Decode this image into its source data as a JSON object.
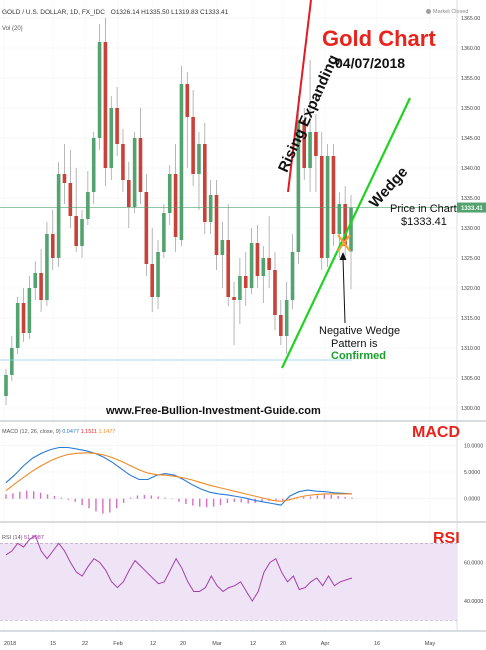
{
  "header": {
    "symbol": "GOLD / U.S. DOLLAR, 1D, FX_IDC",
    "ohlc": "O1326.14  H1335.50  L1319.83  C1333.41",
    "volume_label": "Vol (20)",
    "market_status": "Market Closed"
  },
  "annotations": {
    "title": "Gold Chart",
    "date": "04/07/2018",
    "rising_label": "Rising Expanding",
    "wedge_label": "Wedge",
    "price_title": "Price in Chart",
    "price_value": "$1333.41",
    "negative_line1": "Negative Wedge",
    "negative_line2": "Pattern is",
    "negative_line3": "Confirmed",
    "website": "www.Free-Bullion-Investment-Guide.com",
    "macd_title": "MACD",
    "rsi_title": "RSI"
  },
  "indicators": {
    "macd_legend": "MACD (12, 26, close, 9)",
    "macd_val1": "0.0477",
    "macd_val2": "1.1511",
    "macd_val3": "1.1477",
    "rsi_legend": "RSI (14)",
    "rsi_val": "51.9987"
  },
  "colors": {
    "up": "#53a36f",
    "down": "#c9423a",
    "red_line": "#e31b23",
    "green_line": "#21d321",
    "macd_line": "#2a7bd6",
    "signal_line": "#f08a24",
    "histogram": "#d96cc4",
    "rsi_line": "#a33fa8",
    "rsi_band": "#efe3f6"
  },
  "chart_data": [
    {
      "type": "candlestick",
      "title": "Gold Chart",
      "ylim": [
        1298,
        1367
      ],
      "y_ticks": [
        "1365.00",
        "1360.00",
        "1355.00",
        "1350.00",
        "1345.00",
        "1340.00",
        "1335.00",
        "1330.00",
        "1325.00",
        "1320.00",
        "1315.00",
        "1310.00",
        "1305.00",
        "1300.00"
      ],
      "x_ticks": [
        "2018",
        "15",
        "22",
        "Feb",
        "12",
        "20",
        "Mar",
        "12",
        "20",
        "Apr",
        "16",
        "May"
      ],
      "last_price_label": "1333.41",
      "candles": [
        {
          "o": 1302.0,
          "h": 1306.5,
          "l": 1300.5,
          "c": 1305.5
        },
        {
          "o": 1305.5,
          "h": 1312.0,
          "l": 1304.5,
          "c": 1310.0
        },
        {
          "o": 1310.0,
          "h": 1318.5,
          "l": 1309.0,
          "c": 1317.5
        },
        {
          "o": 1317.5,
          "h": 1320.0,
          "l": 1311.0,
          "c": 1312.5
        },
        {
          "o": 1312.5,
          "h": 1322.0,
          "l": 1311.5,
          "c": 1320.0
        },
        {
          "o": 1320.0,
          "h": 1324.5,
          "l": 1318.0,
          "c": 1322.5
        },
        {
          "o": 1322.5,
          "h": 1326.5,
          "l": 1316.0,
          "c": 1318.0
        },
        {
          "o": 1318.0,
          "h": 1331.0,
          "l": 1317.0,
          "c": 1329.0
        },
        {
          "o": 1329.0,
          "h": 1333.0,
          "l": 1323.0,
          "c": 1325.0
        },
        {
          "o": 1325.0,
          "h": 1341.0,
          "l": 1323.5,
          "c": 1339.0
        },
        {
          "o": 1339.0,
          "h": 1344.0,
          "l": 1334.0,
          "c": 1337.5
        },
        {
          "o": 1337.5,
          "h": 1343.0,
          "l": 1330.0,
          "c": 1332.0
        },
        {
          "o": 1332.0,
          "h": 1340.0,
          "l": 1326.0,
          "c": 1327.0
        },
        {
          "o": 1327.0,
          "h": 1333.0,
          "l": 1325.0,
          "c": 1331.5
        },
        {
          "o": 1331.5,
          "h": 1339.5,
          "l": 1330.5,
          "c": 1336.0
        },
        {
          "o": 1336.0,
          "h": 1346.0,
          "l": 1334.0,
          "c": 1345.0
        },
        {
          "o": 1345.0,
          "h": 1364.0,
          "l": 1343.0,
          "c": 1361.0
        },
        {
          "o": 1361.0,
          "h": 1365.0,
          "l": 1337.0,
          "c": 1340.0
        },
        {
          "o": 1340.0,
          "h": 1352.0,
          "l": 1338.0,
          "c": 1350.0
        },
        {
          "o": 1350.0,
          "h": 1353.5,
          "l": 1342.0,
          "c": 1344.0
        },
        {
          "o": 1344.0,
          "h": 1346.5,
          "l": 1336.0,
          "c": 1338.0
        },
        {
          "o": 1338.0,
          "h": 1341.0,
          "l": 1330.0,
          "c": 1333.5
        },
        {
          "o": 1333.5,
          "h": 1346.0,
          "l": 1332.5,
          "c": 1345.0
        },
        {
          "o": 1345.0,
          "h": 1350.0,
          "l": 1334.0,
          "c": 1336.0
        },
        {
          "o": 1336.0,
          "h": 1339.0,
          "l": 1322.0,
          "c": 1324.0
        },
        {
          "o": 1324.0,
          "h": 1330.0,
          "l": 1316.0,
          "c": 1318.5
        },
        {
          "o": 1318.5,
          "h": 1328.0,
          "l": 1316.5,
          "c": 1326.0
        },
        {
          "o": 1326.0,
          "h": 1334.0,
          "l": 1325.0,
          "c": 1332.5
        },
        {
          "o": 1332.5,
          "h": 1340.5,
          "l": 1330.5,
          "c": 1339.0
        },
        {
          "o": 1339.0,
          "h": 1344.0,
          "l": 1326.0,
          "c": 1328.5
        },
        {
          "o": 1328.0,
          "h": 1357.0,
          "l": 1327.0,
          "c": 1354.0
        },
        {
          "o": 1354.0,
          "h": 1356.0,
          "l": 1340.0,
          "c": 1348.5
        },
        {
          "o": 1348.5,
          "h": 1353.0,
          "l": 1337.0,
          "c": 1339.0
        },
        {
          "o": 1339.0,
          "h": 1346.0,
          "l": 1333.0,
          "c": 1344.0
        },
        {
          "o": 1344.0,
          "h": 1347.5,
          "l": 1329.0,
          "c": 1331.0
        },
        {
          "o": 1331.0,
          "h": 1338.0,
          "l": 1329.0,
          "c": 1335.5
        },
        {
          "o": 1335.5,
          "h": 1338.0,
          "l": 1323.0,
          "c": 1325.5
        },
        {
          "o": 1325.5,
          "h": 1331.0,
          "l": 1320.0,
          "c": 1328.0
        },
        {
          "o": 1328.0,
          "h": 1334.0,
          "l": 1317.0,
          "c": 1318.5
        },
        {
          "o": 1318.5,
          "h": 1321.0,
          "l": 1310.5,
          "c": 1318.0
        },
        {
          "o": 1318.0,
          "h": 1325.0,
          "l": 1314.0,
          "c": 1322.0
        },
        {
          "o": 1322.0,
          "h": 1326.0,
          "l": 1317.0,
          "c": 1320.0
        },
        {
          "o": 1320.0,
          "h": 1330.0,
          "l": 1319.0,
          "c": 1327.5
        },
        {
          "o": 1327.5,
          "h": 1330.5,
          "l": 1320.0,
          "c": 1322.0
        },
        {
          "o": 1322.0,
          "h": 1327.0,
          "l": 1317.5,
          "c": 1325.0
        },
        {
          "o": 1325.0,
          "h": 1332.0,
          "l": 1320.0,
          "c": 1323.0
        },
        {
          "o": 1323.0,
          "h": 1326.0,
          "l": 1313.0,
          "c": 1315.5
        },
        {
          "o": 1315.5,
          "h": 1318.0,
          "l": 1310.5,
          "c": 1312.0
        },
        {
          "o": 1312.0,
          "h": 1321.0,
          "l": 1309.0,
          "c": 1318.0
        },
        {
          "o": 1318.0,
          "h": 1329.0,
          "l": 1316.5,
          "c": 1326.0
        },
        {
          "o": 1326.0,
          "h": 1352.0,
          "l": 1324.0,
          "c": 1348.0
        },
        {
          "o": 1348.0,
          "h": 1350.0,
          "l": 1338.0,
          "c": 1340.0
        },
        {
          "o": 1340.0,
          "h": 1358.0,
          "l": 1336.0,
          "c": 1346.0
        },
        {
          "o": 1346.0,
          "h": 1349.0,
          "l": 1336.0,
          "c": 1342.0
        },
        {
          "o": 1342.0,
          "h": 1346.0,
          "l": 1323.0,
          "c": 1325.0
        },
        {
          "o": 1325.0,
          "h": 1344.0,
          "l": 1323.5,
          "c": 1342.0
        },
        {
          "o": 1342.0,
          "h": 1344.0,
          "l": 1327.0,
          "c": 1329.0
        },
        {
          "o": 1329.0,
          "h": 1336.0,
          "l": 1325.0,
          "c": 1334.0
        },
        {
          "o": 1334.0,
          "h": 1337.0,
          "l": 1325.0,
          "c": 1327.0
        },
        {
          "o": 1326.1,
          "h": 1335.5,
          "l": 1319.8,
          "c": 1333.4
        }
      ]
    },
    {
      "type": "line",
      "title": "MACD",
      "y_ticks": [
        "10.0000",
        "5.0000",
        "0.0000"
      ],
      "ylim": [
        -4,
        14
      ],
      "series": [
        {
          "name": "MACD",
          "values": [
            3,
            4.5,
            6.2,
            7.6,
            8.5,
            9.2,
            9.6,
            9.6,
            9.3,
            9,
            8.5,
            7.8,
            6.8,
            5.6,
            4.4,
            3.6,
            3.6,
            4.4,
            4.7,
            4.4,
            3.6,
            2.6,
            1.8,
            1.2,
            0.9,
            0.7,
            0.4,
            0.1,
            -0.3,
            -0.6,
            -0.9,
            -1.2,
            0.5,
            1.3,
            1.6,
            1.4,
            1.3,
            1.1,
            1.0,
            0.9
          ]
        },
        {
          "name": "Signal",
          "values": [
            1.5,
            2.8,
            4,
            5.2,
            6.2,
            7.1,
            7.8,
            8.3,
            8.5,
            8.6,
            8.5,
            8.2,
            7.7,
            7,
            6.2,
            5.4,
            4.8,
            4.5,
            4.4,
            4.2,
            3.9,
            3.5,
            3,
            2.5,
            2.1,
            1.7,
            1.3,
            0.9,
            0.5,
            0.1,
            -0.3,
            -0.5,
            -0.2,
            0.3,
            0.6,
            0.8,
            0.9,
            0.9,
            0.9,
            0.9
          ]
        }
      ],
      "histogram": [
        0.8,
        1.0,
        1.3,
        1.5,
        1.4,
        1.1,
        0.8,
        0.5,
        0.2,
        -0.2,
        -0.6,
        -1.2,
        -1.8,
        -2.4,
        -2.8,
        -2.6,
        -1.8,
        -0.8,
        0.2,
        0.6,
        0.7,
        0.6,
        0.4,
        0.2,
        -0.1,
        -0.6,
        -1.0,
        -1.3,
        -1.5,
        -1.6,
        -1.5,
        -1.2,
        -0.8,
        -0.6,
        -0.7,
        -0.9,
        -0.8,
        -0.6,
        -0.4,
        -0.3,
        -0.3,
        -0.2,
        0.1,
        0.3,
        0.4,
        0.6,
        0.8,
        0.7,
        0.5,
        0.3,
        0.2
      ]
    },
    {
      "type": "line",
      "title": "RSI",
      "y_ticks": [
        "60.0000",
        "40.0000"
      ],
      "ylim": [
        25,
        80
      ],
      "overbought": 70,
      "oversold": 30,
      "series": [
        {
          "name": "RSI",
          "values": [
            64,
            66,
            70,
            68,
            72,
            74,
            66,
            62,
            66,
            70,
            66,
            60,
            55,
            53,
            58,
            62,
            60,
            56,
            50,
            47,
            50,
            56,
            61,
            58,
            55,
            52,
            49,
            50,
            56,
            62,
            57,
            50,
            45,
            45,
            47,
            53,
            48,
            45,
            47,
            48,
            50,
            45,
            40,
            45,
            55,
            60,
            62,
            55,
            50,
            53,
            46,
            47,
            50,
            52,
            48,
            53,
            48,
            50,
            51,
            52
          ]
        }
      ]
    }
  ]
}
